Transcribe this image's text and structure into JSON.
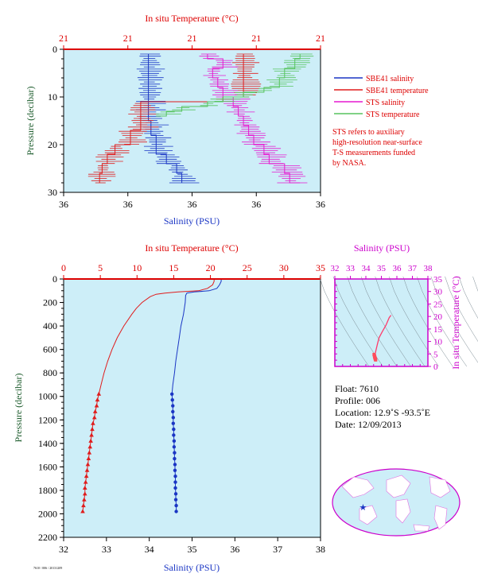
{
  "colors": {
    "plot_bg": "#cdeef8",
    "sbe_salinity": "#1a35c4",
    "sbe_temperature": "#e01c1c",
    "sts_salinity": "#e619d0",
    "sts_temperature": "#56c45e",
    "salinity_axis": "#1a35c4",
    "temperature_axis": "#dd0000",
    "ts_axis": "#cc00cc",
    "pressure_axis": "#1f5e2f"
  },
  "chart_data": [
    {
      "id": "near_surface",
      "type": "line",
      "title": "",
      "top_axis_label": "In situ Temperature (°C)",
      "top_ticks": [
        "21",
        "21",
        "21",
        "21",
        "21"
      ],
      "xlabel": "Salinity (PSU)",
      "x_ticks": [
        "36",
        "36",
        "36",
        "36",
        "36"
      ],
      "ylabel": "Pressure (decibar)",
      "y_ticks": [
        "0",
        "10",
        "20",
        "30"
      ],
      "ylim": [
        0,
        30
      ],
      "legend": [
        {
          "name": "SBE41 salinity",
          "color": "#1a35c4"
        },
        {
          "name": "SBE41 temperature",
          "color": "#e01c1c"
        },
        {
          "name": "STS salinity",
          "color": "#e619d0"
        },
        {
          "name": "STS temperature",
          "color": "#56c45e"
        }
      ],
      "note": [
        "STS refers to auxiliary",
        "high-resolution near-surface",
        "T-S measurements funded",
        "by NASA."
      ],
      "series": [
        {
          "name": "SBE41 salinity",
          "pressure": [
            1,
            3,
            6,
            9,
            11,
            12,
            15,
            18,
            20,
            22,
            24,
            26,
            28
          ],
          "position": [
            0.33,
            0.33,
            0.33,
            0.33,
            0.33,
            0.33,
            0.34,
            0.36,
            0.36,
            0.4,
            0.44,
            0.46,
            0.46
          ]
        },
        {
          "name": "SBE41 temperature",
          "pressure": [
            1,
            4,
            7,
            10,
            11,
            14,
            17,
            20,
            22,
            24,
            26,
            28
          ],
          "position": [
            0.7,
            0.7,
            0.7,
            0.62,
            0.3,
            0.3,
            0.26,
            0.2,
            0.17,
            0.15,
            0.14,
            0.14
          ]
        },
        {
          "name": "STS salinity",
          "pressure": [
            1,
            2,
            4,
            6,
            8,
            10,
            12,
            14,
            16,
            18,
            20,
            22,
            24,
            26,
            28
          ],
          "position": [
            0.56,
            0.62,
            0.58,
            0.6,
            0.62,
            0.66,
            0.68,
            0.7,
            0.72,
            0.74,
            0.78,
            0.8,
            0.86,
            0.88,
            0.92
          ]
        },
        {
          "name": "STS temperature",
          "pressure": [
            1,
            2,
            4,
            6,
            8,
            9,
            10,
            11,
            12,
            13,
            14
          ],
          "position": [
            0.92,
            0.9,
            0.86,
            0.84,
            0.78,
            0.7,
            0.62,
            0.56,
            0.46,
            0.4,
            0.36
          ]
        }
      ]
    },
    {
      "id": "full_profile",
      "type": "line",
      "title": "",
      "top_axis_label": "In situ Temperature (°C)",
      "top_ticks": [
        "0",
        "5",
        "10",
        "15",
        "20",
        "25",
        "30",
        "35"
      ],
      "xlabel": "Salinity (PSU)",
      "x_ticks": [
        "32",
        "33",
        "34",
        "35",
        "36",
        "37",
        "38"
      ],
      "salinity_xlim": [
        32,
        38
      ],
      "temperature_xlim": [
        0,
        35
      ],
      "ylabel": "Pressure (decibar)",
      "y_ticks": [
        "0",
        "200",
        "400",
        "600",
        "800",
        "1000",
        "1200",
        "1400",
        "1600",
        "1800",
        "2000",
        "2200"
      ],
      "ylim": [
        0,
        2200
      ],
      "series": [
        {
          "name": "Salinity",
          "pressure": [
            0,
            20,
            50,
            80,
            100,
            110,
            120,
            140,
            200,
            300,
            400,
            500,
            600,
            700,
            800,
            900,
            980
          ],
          "values": [
            35.68,
            35.68,
            35.64,
            35.58,
            35.4,
            35.05,
            34.88,
            34.85,
            34.84,
            34.8,
            34.74,
            34.7,
            34.66,
            34.62,
            34.59,
            34.55,
            34.53
          ]
        },
        {
          "name": "Temperature",
          "pressure": [
            0,
            20,
            50,
            80,
            100,
            110,
            120,
            130,
            150,
            200,
            250,
            300,
            400,
            500,
            600,
            700,
            800,
            900,
            980
          ],
          "values": [
            20.5,
            20.5,
            20.3,
            19.6,
            18.4,
            15.6,
            13.8,
            12.6,
            11.8,
            10.7,
            9.9,
            9.3,
            8.2,
            7.3,
            6.6,
            6.0,
            5.5,
            5.1,
            4.8
          ]
        },
        {
          "name": "Salinity (discrete)",
          "marker": "circle",
          "pressure": [
            980,
            1030,
            1080,
            1130,
            1180,
            1230,
            1280,
            1330,
            1380,
            1430,
            1480,
            1530,
            1580,
            1630,
            1680,
            1730,
            1780,
            1830,
            1880,
            1930,
            1980
          ],
          "values": [
            34.53,
            34.54,
            34.55,
            34.55,
            34.56,
            34.56,
            34.57,
            34.57,
            34.58,
            34.58,
            34.59,
            34.59,
            34.6,
            34.6,
            34.61,
            34.61,
            34.61,
            34.62,
            34.62,
            34.63,
            34.63
          ]
        },
        {
          "name": "Temperature (discrete)",
          "marker": "triangle",
          "pressure": [
            980,
            1030,
            1080,
            1130,
            1180,
            1230,
            1280,
            1330,
            1380,
            1430,
            1480,
            1530,
            1580,
            1630,
            1680,
            1730,
            1780,
            1830,
            1880,
            1930,
            1980
          ],
          "values": [
            4.8,
            4.6,
            4.5,
            4.3,
            4.2,
            4.0,
            3.9,
            3.8,
            3.7,
            3.6,
            3.5,
            3.4,
            3.3,
            3.2,
            3.1,
            3.0,
            2.9,
            2.9,
            2.8,
            2.7,
            2.6
          ]
        }
      ]
    },
    {
      "id": "ts_diagram",
      "type": "line",
      "title": "",
      "top_axis_label": "Salinity (PSU)",
      "top_ticks": [
        "32",
        "33",
        "34",
        "35",
        "36",
        "37",
        "38"
      ],
      "right_axis_label": "In situ Temperature (°C)",
      "right_ticks": [
        "0",
        "5",
        "10",
        "15",
        "20",
        "25",
        "30",
        "35"
      ],
      "xlim": [
        32,
        38
      ],
      "ylim": [
        0,
        35
      ],
      "series": [
        {
          "name": "T-S",
          "salinity": [
            35.62,
            35.5,
            35.3,
            35.05,
            34.85,
            34.75,
            34.65,
            34.6
          ],
          "temperature": [
            20.5,
            19.5,
            16.5,
            13.8,
            11.5,
            9.0,
            6.5,
            5.0
          ]
        },
        {
          "name": "T-S (discrete)",
          "salinity": [
            34.53,
            34.55,
            34.56,
            34.57,
            34.58,
            34.59,
            34.6,
            34.61,
            34.62,
            34.63
          ],
          "temperature": [
            4.8,
            4.4,
            4.1,
            3.8,
            3.6,
            3.4,
            3.2,
            3.0,
            2.8,
            2.6
          ]
        }
      ]
    }
  ],
  "float_info": {
    "float": "Float:  7610",
    "profile": "Profile:  006",
    "location": "Location:  12.9˚S  -93.5˚E",
    "date": "Date:  12/09/2013"
  },
  "map": {
    "marker_lat": -12.9,
    "marker_lon": -93.5
  },
  "footer_stamp": "7610 / 006 / 20131209"
}
